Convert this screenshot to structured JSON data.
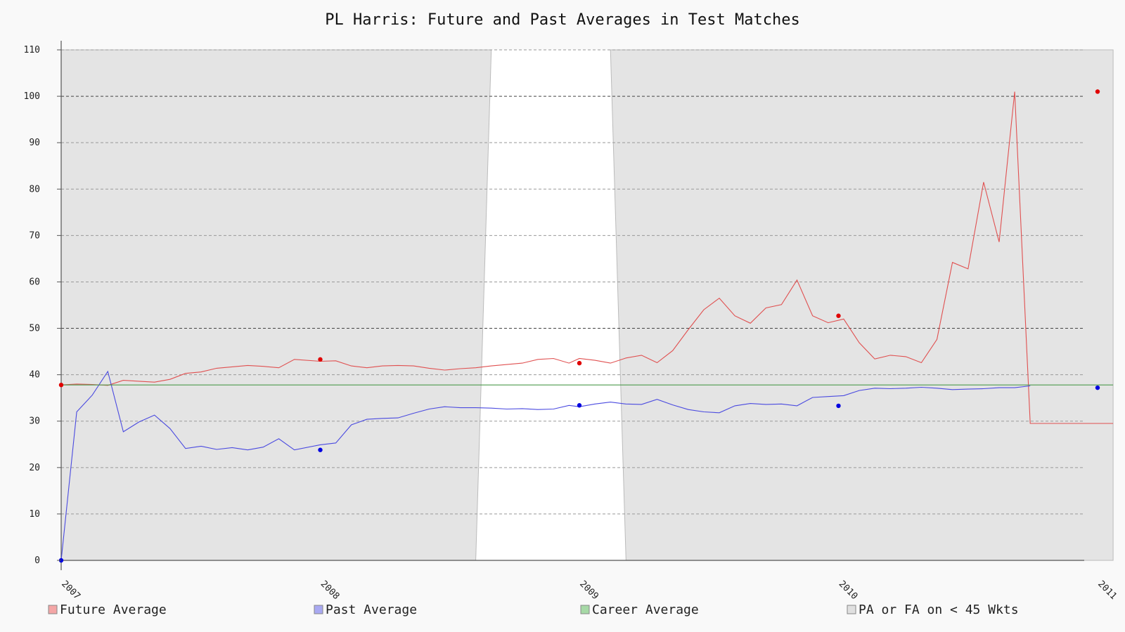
{
  "chart_data": {
    "type": "line",
    "title": "PL Harris: Future and Past Averages in Test Matches",
    "xlabel": "",
    "ylabel": "",
    "x_ticks": [
      {
        "label": "2007",
        "x": 2007.0
      },
      {
        "label": "2008",
        "x": 2008.0
      },
      {
        "label": "2009",
        "x": 2009.0
      },
      {
        "label": "2010",
        "x": 2010.0
      },
      {
        "label": "2011",
        "x": 2011.0
      }
    ],
    "xlim": [
      2007.0,
      2011.0
    ],
    "ylim": [
      0,
      110
    ],
    "y_ticks": [
      "0",
      "10",
      "20",
      "30",
      "40",
      "50",
      "60",
      "70",
      "80",
      "90",
      "100",
      "110"
    ],
    "grid": true,
    "legend": {
      "placement": "bottom",
      "entries": [
        {
          "label": "Future Average",
          "color": "#f4a6a6"
        },
        {
          "label": "Past Average",
          "color": "#a9a9f2"
        },
        {
          "label": "Career Average",
          "color": "#a6d9a6"
        },
        {
          "label": "PA or FA on < 45 Wkts",
          "color": "#e0e0e0"
        }
      ]
    },
    "series": [
      {
        "name": "Future Average",
        "color": "#e05050",
        "x": [
          2007.0,
          2007.06,
          2007.12,
          2007.18,
          2007.24,
          2007.3,
          2007.36,
          2007.42,
          2007.48,
          2007.54,
          2007.6,
          2007.66,
          2007.72,
          2007.78,
          2007.84,
          2007.9,
          2008.0,
          2008.06,
          2008.12,
          2008.18,
          2008.24,
          2008.3,
          2008.36,
          2008.42,
          2008.48,
          2008.54,
          2008.6,
          2008.66,
          2008.72,
          2008.78,
          2008.84,
          2008.9,
          2008.96,
          2009.0,
          2009.06,
          2009.12,
          2009.18,
          2009.24,
          2009.3,
          2009.36,
          2009.42,
          2009.48,
          2009.54,
          2009.6,
          2009.66,
          2009.72,
          2009.78,
          2009.84,
          2009.9,
          2009.96,
          2010.02,
          2010.08,
          2010.14,
          2010.2,
          2010.26,
          2010.32,
          2010.38,
          2010.44,
          2010.5,
          2010.56,
          2010.62,
          2010.68,
          2010.74,
          2010.8,
          2010.86,
          2010.92,
          2011.0,
          2011.06
        ],
        "y": [
          37.8,
          38.0,
          37.9,
          37.7,
          38.8,
          38.6,
          38.4,
          39.0,
          40.3,
          40.6,
          41.4,
          41.7,
          42.0,
          41.8,
          41.5,
          43.3,
          42.9,
          43.0,
          41.9,
          41.5,
          41.9,
          42.0,
          41.9,
          41.4,
          41.0,
          41.3,
          41.5,
          41.9,
          42.2,
          42.5,
          43.3,
          43.5,
          42.5,
          43.5,
          43.1,
          42.5,
          43.6,
          44.2,
          42.6,
          45.2,
          49.7,
          54.0,
          56.5,
          52.7,
          51.1,
          54.4,
          55.1,
          60.4,
          52.7,
          51.2,
          52.0,
          46.9,
          43.4,
          44.2,
          43.9,
          42.6,
          47.6,
          64.2,
          62.8,
          81.5,
          68.6,
          101.0,
          29.5,
          29.5,
          29.5,
          29.5,
          29.5,
          29.5
        ]
      },
      {
        "name": "Past Average",
        "color": "#4a4ae0",
        "x": [
          2007.0,
          2007.06,
          2007.12,
          2007.18,
          2007.24,
          2007.3,
          2007.36,
          2007.42,
          2007.48,
          2007.54,
          2007.6,
          2007.66,
          2007.72,
          2007.78,
          2007.84,
          2007.9,
          2008.0,
          2008.06,
          2008.12,
          2008.18,
          2008.24,
          2008.3,
          2008.36,
          2008.42,
          2008.48,
          2008.54,
          2008.6,
          2008.66,
          2008.72,
          2008.78,
          2008.84,
          2008.9,
          2008.96,
          2009.0,
          2009.06,
          2009.12,
          2009.18,
          2009.24,
          2009.3,
          2009.36,
          2009.42,
          2009.48,
          2009.54,
          2009.6,
          2009.66,
          2009.72,
          2009.78,
          2009.84,
          2009.9,
          2009.96,
          2010.02,
          2010.08,
          2010.14,
          2010.2,
          2010.26,
          2010.32,
          2010.38,
          2010.44,
          2010.5,
          2010.56,
          2010.62,
          2010.68,
          2010.74
        ],
        "y": [
          0.0,
          32.0,
          35.6,
          40.7,
          27.7,
          29.8,
          31.3,
          28.4,
          24.1,
          24.6,
          23.9,
          24.3,
          23.8,
          24.4,
          26.2,
          23.8,
          24.9,
          25.3,
          29.2,
          30.4,
          30.6,
          30.7,
          31.7,
          32.6,
          33.1,
          32.9,
          32.9,
          32.8,
          32.6,
          32.7,
          32.5,
          32.6,
          33.4,
          33.1,
          33.7,
          34.1,
          33.7,
          33.6,
          34.7,
          33.5,
          32.5,
          32.0,
          31.8,
          33.3,
          33.8,
          33.6,
          33.7,
          33.3,
          35.1,
          35.3,
          35.5,
          36.6,
          37.1,
          37.0,
          37.1,
          37.3,
          37.1,
          36.8,
          36.9,
          37.0,
          37.2,
          37.2,
          37.6
        ]
      },
      {
        "name": "Career Average",
        "color": "#4c9a4c",
        "x": [
          2007.0,
          2011.06
        ],
        "y": [
          37.8,
          37.8
        ]
      }
    ],
    "markers": [
      {
        "series": "Future Average",
        "color": "#e00000",
        "points": [
          [
            2007.0,
            37.8
          ],
          [
            2008.0,
            43.3
          ],
          [
            2009.0,
            42.5
          ],
          [
            2010.0,
            52.7
          ],
          [
            2011.0,
            101.0
          ]
        ]
      },
      {
        "series": "Past Average",
        "color": "#0000e0",
        "points": [
          [
            2007.0,
            0.0
          ],
          [
            2008.0,
            23.8
          ],
          [
            2009.0,
            33.4
          ],
          [
            2010.0,
            33.3
          ],
          [
            2011.0,
            37.2
          ]
        ]
      }
    ],
    "shaded_regions": [
      {
        "label": "PA or FA on < 45 Wkts",
        "from": [
          2007.0,
          2008.66
        ],
        "to": [
          2007.0,
          2008.6
        ]
      },
      {
        "label": "PA or FA on < 45 Wkts",
        "from": [
          2009.12,
          2011.06
        ],
        "to": [
          2009.18,
          2011.06
        ]
      }
    ]
  }
}
